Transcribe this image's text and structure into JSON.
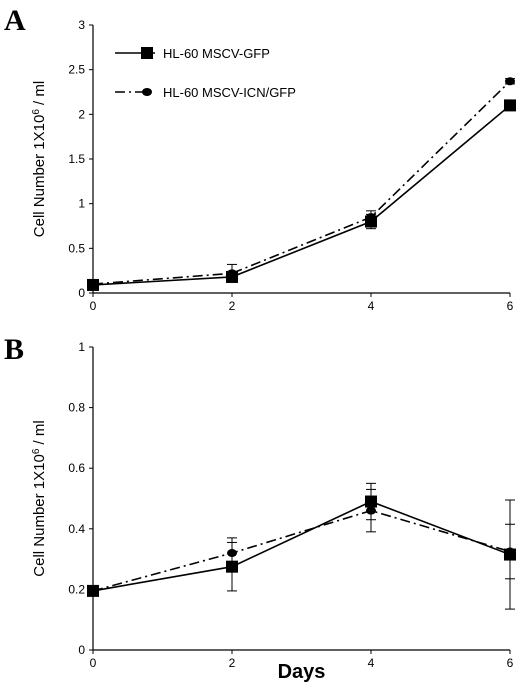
{
  "chart_data": [
    {
      "type": "line",
      "panel": "A",
      "x": [
        0,
        2,
        4,
        6
      ],
      "xlim": [
        0,
        6
      ],
      "xticks": [
        "0",
        "2",
        "4",
        "6"
      ],
      "ylim": [
        0,
        3
      ],
      "yticks": [
        "0",
        "0.5",
        "1",
        "1.5",
        "2",
        "2.5",
        "3"
      ],
      "ylabel_main": "Cell Number 1X10",
      "ylabel_sup": "6",
      "ylabel_tail": " / ml",
      "legend": "top-left",
      "series": [
        {
          "name": "HL-60 MSCV-GFP",
          "values": [
            0.09,
            0.18,
            0.8,
            2.1
          ],
          "err": [
            0.02,
            0.04,
            0.08,
            0.05
          ],
          "marker": "square",
          "dash": "solid"
        },
        {
          "name": "HL-60 MSCV-ICN/GFP",
          "values": [
            0.1,
            0.22,
            0.85,
            2.37
          ],
          "err": [
            0.02,
            0.1,
            0.07,
            0.03
          ],
          "marker": "circle",
          "dash": "dashdot"
        }
      ]
    },
    {
      "type": "line",
      "panel": "B",
      "x": [
        0,
        2,
        4,
        6
      ],
      "xlim": [
        0,
        6
      ],
      "xticks": [
        "0",
        "2",
        "4",
        "6"
      ],
      "ylim": [
        0,
        1
      ],
      "yticks": [
        "0",
        "0.2",
        "0.4",
        "0.6",
        "0.8",
        "1"
      ],
      "ylabel_main": "Cell Number 1X10",
      "ylabel_sup": "6",
      "ylabel_tail": " / ml",
      "xlabel": "Days",
      "series": [
        {
          "name": "HL-60 MSCV-GFP",
          "values": [
            0.195,
            0.275,
            0.49,
            0.315
          ],
          "err": [
            0.005,
            0.08,
            0.06,
            0.18
          ],
          "marker": "square",
          "dash": "solid"
        },
        {
          "name": "HL-60 MSCV-ICN/GFP",
          "values": [
            0.195,
            0.32,
            0.46,
            0.325
          ],
          "err": [
            0.005,
            0.05,
            0.07,
            0.09
          ],
          "marker": "circle",
          "dash": "dashdot"
        }
      ]
    }
  ]
}
